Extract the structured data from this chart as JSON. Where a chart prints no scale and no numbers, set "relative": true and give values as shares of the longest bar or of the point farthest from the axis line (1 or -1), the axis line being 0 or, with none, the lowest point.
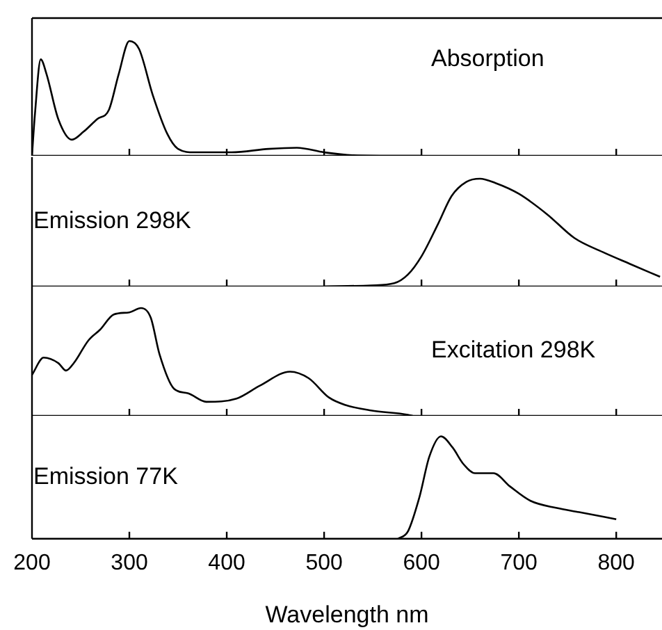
{
  "chart_data": [
    {
      "type": "line",
      "title": "Absorption",
      "relative": true,
      "xlim": [
        200,
        847
      ],
      "xticks": [
        200,
        300,
        400,
        500,
        600,
        700,
        800
      ],
      "tick_labels": false,
      "grid": false,
      "legend": false,
      "marker": "none",
      "line_style": "solid",
      "series": [
        {
          "color": "#000000",
          "x": [
            200,
            203,
            209,
            215,
            227,
            241,
            253,
            267,
            279,
            289,
            300,
            310,
            324,
            339,
            350,
            367,
            405,
            443,
            472,
            500,
            529,
            581,
            600
          ],
          "values": [
            0,
            0.36,
            0.84,
            0.71,
            0.32,
            0.14,
            0.21,
            0.32,
            0.4,
            0.71,
            1,
            0.93,
            0.53,
            0.19,
            0.06,
            0.03,
            0.03,
            0.06,
            0.07,
            0.03,
            0.005,
            0,
            0
          ]
        }
      ]
    },
    {
      "type": "line",
      "title": "Emission 298K",
      "relative": true,
      "xlim": [
        200,
        847
      ],
      "xticks": [
        200,
        300,
        400,
        500,
        600,
        700,
        800
      ],
      "tick_labels": false,
      "grid": false,
      "legend": false,
      "marker": "none",
      "line_style": "solid",
      "series": [
        {
          "color": "#000000",
          "x": [
            500,
            548,
            572,
            586,
            600,
            617,
            631,
            646,
            660,
            676,
            700,
            729,
            757,
            786,
            814,
            845
          ],
          "values": [
            0,
            0.01,
            0.03,
            0.11,
            0.28,
            0.58,
            0.84,
            0.97,
            1,
            0.96,
            0.86,
            0.67,
            0.45,
            0.32,
            0.21,
            0.09
          ]
        }
      ]
    },
    {
      "type": "line",
      "title": "Excitation 298K",
      "relative": true,
      "xlim": [
        200,
        847
      ],
      "xticks": [
        200,
        300,
        400,
        500,
        600,
        700,
        800
      ],
      "tick_labels": false,
      "grid": false,
      "legend": false,
      "marker": "none",
      "line_style": "solid",
      "series": [
        {
          "color": "#000000",
          "x": [
            200,
            212,
            227,
            235,
            243,
            258,
            270,
            284,
            300,
            312,
            322,
            331,
            346,
            360,
            379,
            410,
            434,
            465,
            484,
            505,
            522,
            548,
            586,
            591
          ],
          "values": [
            0.38,
            0.54,
            0.49,
            0.42,
            0.49,
            0.7,
            0.8,
            0.94,
            0.96,
            1,
            0.91,
            0.57,
            0.25,
            0.21,
            0.13,
            0.16,
            0.28,
            0.41,
            0.35,
            0.17,
            0.1,
            0.05,
            0.01,
            0
          ]
        }
      ]
    },
    {
      "type": "line",
      "title": "Emission 77K",
      "xlabel": "Wavelength nm",
      "relative": true,
      "xlim": [
        200,
        847
      ],
      "xticks": [
        200,
        300,
        400,
        500,
        600,
        700,
        800
      ],
      "grid": false,
      "legend": false,
      "marker": "none",
      "line_style": "solid",
      "series": [
        {
          "color": "#000000",
          "x": [
            576,
            586,
            598,
            608,
            620,
            632,
            643,
            655,
            674,
            691,
            712,
            739,
            762,
            800
          ],
          "values": [
            0,
            0.07,
            0.41,
            0.8,
            1,
            0.89,
            0.73,
            0.64,
            0.64,
            0.51,
            0.37,
            0.3,
            0.26,
            0.19
          ]
        }
      ]
    }
  ]
}
